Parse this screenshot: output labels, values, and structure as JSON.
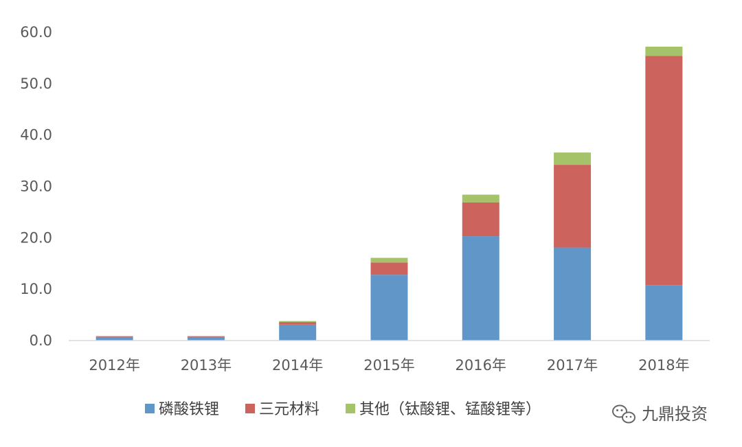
{
  "chart_data": {
    "type": "bar",
    "stacked": true,
    "categories": [
      "2012年",
      "2013年",
      "2014年",
      "2015年",
      "2016年",
      "2017年",
      "2018年"
    ],
    "series": [
      {
        "name": "磷酸铁锂",
        "color": "#6097C8",
        "values": [
          0.7,
          0.7,
          3.1,
          12.8,
          20.3,
          18.1,
          10.8
        ]
      },
      {
        "name": "三元材料",
        "color": "#CC635C",
        "values": [
          0.1,
          0.1,
          0.5,
          2.4,
          6.6,
          16.1,
          44.6
        ]
      },
      {
        "name": "其他（钛酸锂、锰酸锂等）",
        "color": "#A5C46A",
        "values": [
          0.1,
          0.1,
          0.2,
          0.9,
          1.5,
          2.4,
          1.8
        ]
      }
    ],
    "ylim": [
      0,
      60
    ],
    "yticks": [
      "0.0",
      "10.0",
      "20.0",
      "30.0",
      "40.0",
      "50.0",
      "60.0"
    ],
    "grid": false,
    "legend_position": "bottom",
    "title": "",
    "xlabel": "",
    "ylabel": ""
  },
  "watermark": {
    "text": "九鼎投资",
    "icon": "wechat-icon"
  }
}
